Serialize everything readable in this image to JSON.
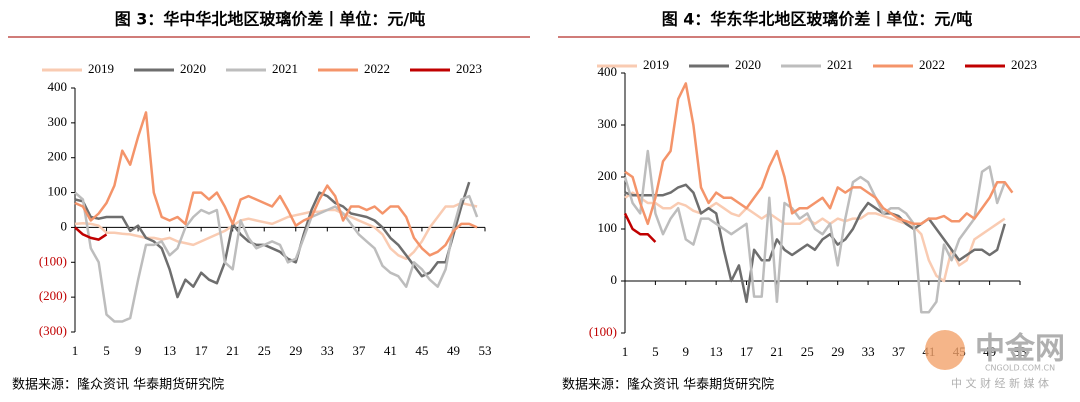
{
  "chart_data": [
    {
      "type": "line",
      "title": "图 3：华中华北地区玻璃价差丨单位：元/吨",
      "source": "数据来源：隆众资讯 华泰期货研究院",
      "x": [
        1,
        2,
        3,
        4,
        5,
        6,
        7,
        8,
        9,
        10,
        11,
        12,
        13,
        14,
        15,
        16,
        17,
        18,
        19,
        20,
        21,
        22,
        23,
        24,
        25,
        26,
        27,
        28,
        29,
        30,
        31,
        32,
        33,
        34,
        35,
        36,
        37,
        38,
        39,
        40,
        41,
        42,
        43,
        44,
        45,
        46,
        47,
        48,
        49,
        50,
        51,
        52,
        53
      ],
      "xlim": [
        1,
        53
      ],
      "xticks": [
        1,
        5,
        9,
        13,
        17,
        21,
        25,
        29,
        33,
        37,
        41,
        45,
        49,
        53
      ],
      "ylim": [
        -300,
        400
      ],
      "yticks": [
        {
          "value": -300,
          "label": "(300)"
        },
        {
          "value": -200,
          "label": "(200)"
        },
        {
          "value": -100,
          "label": "(100)"
        },
        0,
        100,
        200,
        300,
        400
      ],
      "series": [
        {
          "name": "2019",
          "color": "#f9cbb2",
          "values": [
            10,
            12,
            10,
            5,
            -15,
            -15,
            -18,
            -20,
            -25,
            -30,
            -30,
            -35,
            -30,
            -40,
            -45,
            -50,
            -40,
            -30,
            -20,
            -10,
            5,
            20,
            25,
            20,
            15,
            10,
            20,
            30,
            35,
            40,
            45,
            45,
            50,
            50,
            40,
            30,
            20,
            10,
            0,
            -20,
            -60,
            -80,
            -90,
            -70,
            -40,
            0,
            30,
            60,
            60,
            70,
            65,
            60,
            null
          ]
        },
        {
          "name": "2020",
          "color": "#6e6e6e",
          "values": [
            80,
            75,
            30,
            25,
            30,
            30,
            30,
            -10,
            5,
            -30,
            -40,
            -60,
            -120,
            -200,
            -150,
            -170,
            -130,
            -150,
            -160,
            -100,
            10,
            -20,
            -40,
            -50,
            -50,
            -60,
            -70,
            -90,
            -100,
            -20,
            50,
            100,
            90,
            70,
            60,
            40,
            35,
            30,
            20,
            0,
            -30,
            -50,
            -80,
            -110,
            -140,
            -130,
            -100,
            -100,
            -20,
            60,
            130,
            null,
            null
          ]
        },
        {
          "name": "2021",
          "color": "#bdbdbd",
          "values": [
            100,
            80,
            -60,
            -100,
            -250,
            -270,
            -270,
            -260,
            -150,
            -50,
            -50,
            -40,
            -80,
            -60,
            0,
            30,
            50,
            40,
            50,
            -100,
            -120,
            20,
            -30,
            -60,
            -50,
            -40,
            -50,
            -100,
            -90,
            -30,
            30,
            40,
            50,
            60,
            40,
            10,
            -20,
            -40,
            -60,
            -110,
            -130,
            -140,
            -170,
            -100,
            -120,
            -150,
            -170,
            -120,
            0,
            80,
            90,
            30,
            null
          ]
        },
        {
          "name": "2022",
          "color": "#f4946a",
          "values": [
            70,
            60,
            20,
            40,
            70,
            120,
            220,
            180,
            260,
            330,
            100,
            30,
            20,
            30,
            10,
            100,
            100,
            80,
            100,
            60,
            10,
            80,
            90,
            80,
            70,
            60,
            90,
            50,
            5,
            20,
            30,
            80,
            120,
            90,
            20,
            60,
            60,
            50,
            60,
            40,
            60,
            60,
            30,
            -30,
            -60,
            -80,
            -70,
            -50,
            -10,
            10,
            10,
            0,
            null
          ]
        },
        {
          "name": "2023",
          "color": "#c00000",
          "values": [
            0,
            -20,
            -30,
            -35,
            -20,
            null,
            null,
            null,
            null,
            null,
            null,
            null,
            null,
            null,
            null,
            null,
            null,
            null,
            null,
            null,
            null,
            null,
            null,
            null,
            null,
            null,
            null,
            null,
            null,
            null,
            null,
            null,
            null,
            null,
            null,
            null,
            null,
            null,
            null,
            null,
            null,
            null,
            null,
            null,
            null,
            null,
            null,
            null,
            null,
            null,
            null,
            null,
            null
          ]
        }
      ]
    },
    {
      "type": "line",
      "title": "图 4：华东华北地区玻璃价差丨单位：元/吨",
      "source": "数据来源：隆众资讯 华泰期货研究院",
      "x": [
        1,
        2,
        3,
        4,
        5,
        6,
        7,
        8,
        9,
        10,
        11,
        12,
        13,
        14,
        15,
        16,
        17,
        18,
        19,
        20,
        21,
        22,
        23,
        24,
        25,
        26,
        27,
        28,
        29,
        30,
        31,
        32,
        33,
        34,
        35,
        36,
        37,
        38,
        39,
        40,
        41,
        42,
        43,
        44,
        45,
        46,
        47,
        48,
        49,
        50,
        51,
        52,
        53
      ],
      "xlim": [
        1,
        53
      ],
      "xticks": [
        1,
        5,
        9,
        13,
        17,
        21,
        25,
        29,
        33,
        37,
        41,
        45,
        49,
        53
      ],
      "ylim": [
        -100,
        400
      ],
      "yticks": [
        {
          "value": -100,
          "label": "(100)"
        },
        0,
        100,
        200,
        300,
        400
      ],
      "series": [
        {
          "name": "2019",
          "color": "#f9cbb2",
          "values": [
            160,
            170,
            160,
            150,
            150,
            140,
            140,
            150,
            145,
            135,
            130,
            140,
            150,
            140,
            130,
            125,
            140,
            130,
            120,
            130,
            120,
            110,
            110,
            110,
            120,
            110,
            120,
            110,
            120,
            115,
            120,
            120,
            130,
            130,
            125,
            120,
            115,
            110,
            105,
            90,
            40,
            10,
            0,
            60,
            30,
            40,
            80,
            90,
            100,
            110,
            120,
            null,
            null
          ]
        },
        {
          "name": "2020",
          "color": "#6e6e6e",
          "values": [
            170,
            165,
            165,
            165,
            165,
            165,
            170,
            180,
            185,
            170,
            130,
            140,
            130,
            60,
            0,
            30,
            -40,
            60,
            40,
            40,
            80,
            60,
            50,
            60,
            70,
            60,
            80,
            90,
            70,
            80,
            100,
            130,
            150,
            140,
            130,
            130,
            125,
            110,
            100,
            110,
            120,
            100,
            80,
            60,
            40,
            50,
            60,
            60,
            50,
            60,
            110,
            null,
            null
          ]
        },
        {
          "name": "2021",
          "color": "#bdbdbd",
          "values": [
            200,
            150,
            130,
            250,
            130,
            90,
            120,
            140,
            80,
            70,
            120,
            120,
            110,
            100,
            90,
            100,
            110,
            -30,
            -30,
            160,
            -40,
            150,
            140,
            120,
            130,
            100,
            90,
            110,
            30,
            120,
            190,
            200,
            190,
            160,
            130,
            140,
            140,
            130,
            110,
            -60,
            -60,
            -40,
            70,
            40,
            80,
            100,
            120,
            210,
            220,
            150,
            190,
            null,
            null
          ]
        },
        {
          "name": "2022",
          "color": "#f4946a",
          "values": [
            210,
            200,
            150,
            110,
            160,
            230,
            250,
            350,
            380,
            300,
            180,
            150,
            170,
            160,
            160,
            150,
            140,
            160,
            180,
            220,
            250,
            200,
            130,
            140,
            140,
            150,
            160,
            140,
            180,
            170,
            180,
            180,
            170,
            160,
            140,
            130,
            120,
            115,
            110,
            110,
            120,
            120,
            125,
            115,
            115,
            130,
            120,
            140,
            160,
            190,
            190,
            170,
            null
          ]
        },
        {
          "name": "2023",
          "color": "#c00000",
          "values": [
            130,
            100,
            90,
            90,
            75,
            null,
            null,
            null,
            null,
            null,
            null,
            null,
            null,
            null,
            null,
            null,
            null,
            null,
            null,
            null,
            null,
            null,
            null,
            null,
            null,
            null,
            null,
            null,
            null,
            null,
            null,
            null,
            null,
            null,
            null,
            null,
            null,
            null,
            null,
            null,
            null,
            null,
            null,
            null,
            null,
            null,
            null,
            null,
            null,
            null,
            null,
            null,
            null
          ]
        }
      ]
    }
  ],
  "watermark": {
    "main": "中金网",
    "url": "CNGOLD.COM.CN",
    "tagline": "中 文 财 经 新 媒 体"
  }
}
